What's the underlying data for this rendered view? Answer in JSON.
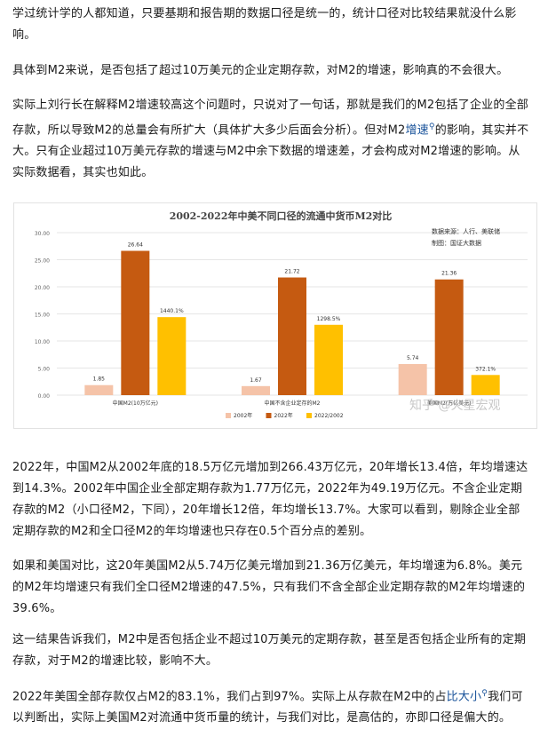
{
  "article": {
    "p1": "学过统计学的人都知道，只要基期和报告期的数据口径是统一的，统计口径对比较结果就没什么影响。",
    "p2": "具体到M2来说，是否包括了超过10万美元的企业定期存款，对M2的增速，影响真的不会很大。",
    "p3_a": "实际上刘行长在解释M2增速较高这个问题时，只说对了一句话，那就是我们的M2包括了企业的全部存款，所以导致M2的总量会有所扩大（具体扩大多少后面会分析）。但对M2",
    "p3_link": "增速",
    "p3_b": "的影响，其实并不大。只有企业超过10万美元存款的增速与M2中余下数据的增速差，才会构成对M2增速的影响。从实际数据看，其实也如此。",
    "p4": "2022年，中国M2从2002年底的18.5万亿元增加到266.43万亿元，20年增长13.4倍，年均增速达到14.3%。2002年中国企业全部定期存款为1.77万亿元，2022年为49.19万亿元。不含企业定期存款的M2（小口径M2，下同），20年增长12倍，年均增长13.7%。大家可以看到，剔除企业全部定期存款的M2和全口径M2的年均增速也只存在0.5个百分点的差别。",
    "p5": "如果和美国对比，这20年美国M2从5.74万亿美元增加到21.36万亿美元，年均增速为6.8%。美元的M2年均增速只有我们全口径M2增速的47.5%，只有我们不含全部企业定期存款的M2年均增速的39.6%。",
    "p6": "这一结果告诉我们，M2中是否包括企业不超过10万美元的定期存款，甚至是否包括企业所有的定期存款，对于M2的增速比较，影响不大。",
    "p7_a": "2022年美国全部存款仅占M2的83.1%，我们占到97%。实际上从存款在M2中的占",
    "p7_link": "比大小",
    "p7_b": "我们可以判断出，实际上美国M2对流通中货币量的统计，与我们对比，是高估的，亦即口径是偏大的。"
  },
  "icons": {
    "search_marker": "magnifier-icon"
  },
  "figure": {
    "source_line1": "数据来源：人行、美联储",
    "source_line2": "制图：国证大数据",
    "watermark": "知乎 @火星宏观"
  },
  "colors": {
    "c2002": "#f5c3a8",
    "c2022": "#c55a11",
    "ratio": "#ffc000",
    "link": "#175199"
  },
  "chart_data": {
    "type": "bar",
    "title": "2002-2022年中美不同口径的流通中货币M2对比",
    "categories": [
      "中国M2(10万亿元)",
      "中国不含企业定存的M2",
      "美国M2(万亿美元)"
    ],
    "series": [
      {
        "name": "2002年",
        "values": [
          1.85,
          1.67,
          5.74
        ],
        "labels": [
          "1.85",
          "1.67",
          "5.74"
        ]
      },
      {
        "name": "2022年",
        "values": [
          26.64,
          21.72,
          21.36
        ],
        "labels": [
          "26.64",
          "21.72",
          "21.36"
        ]
      },
      {
        "name": "2022/2002",
        "values": [
          14.401,
          12.985,
          3.721
        ],
        "labels": [
          "1440.1%",
          "1298.5%",
          "372.1%"
        ]
      }
    ],
    "ylim": [
      0,
      30
    ],
    "yticks": [
      "0.00",
      "5.00",
      "10.00",
      "15.00",
      "20.00",
      "25.00",
      "30.00"
    ],
    "grid": true,
    "legend": "bottom"
  }
}
